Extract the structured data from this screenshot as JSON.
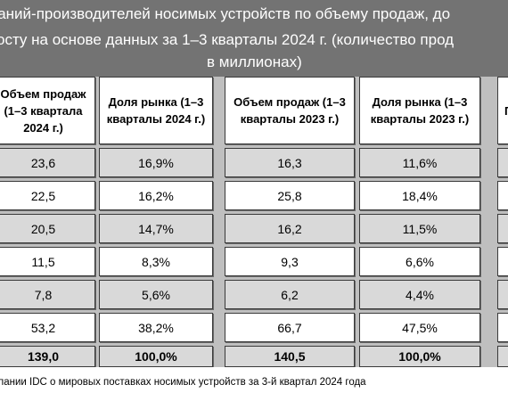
{
  "title": {
    "line1": "паний-производителей носимых устройств по объему продаж, до",
    "line2": "осту на основе данных за 1–3 кварталы 2024 г. (количество прод",
    "line3": "в миллионах)"
  },
  "columns": [
    "Объем продаж (1–3 кварталы 2024 г.)",
    "Доля рынка (1–3 кварталы 2024 г.)",
    "Объем продаж (1–3 кварталы 2023 г.)",
    "Доля рынка (1–3 кварталы 2023 г.)",
    "Г"
  ],
  "header_cells": {
    "c1": [
      "Объем продаж",
      "(1–3 квартала",
      "2024 г.)"
    ],
    "c2": [
      "Доля рынка (1–3",
      "кварталы 2024 г.)"
    ],
    "c3": [
      "Объем продаж (1–3",
      "кварталы 2023 г.)"
    ],
    "c4": [
      "Доля рынка (1–3",
      "кварталы 2023 г.)"
    ],
    "c5": "Г"
  },
  "rows": [
    {
      "sales_2024": "23,6",
      "share_2024": "16,9%",
      "sales_2023": "16,3",
      "share_2023": "11,6%"
    },
    {
      "sales_2024": "22,5",
      "share_2024": "16,2%",
      "sales_2023": "25,8",
      "share_2023": "18,4%"
    },
    {
      "sales_2024": "20,5",
      "share_2024": "14,7%",
      "sales_2023": "16,2",
      "share_2023": "11,5%"
    },
    {
      "sales_2024": "11,5",
      "share_2024": "8,3%",
      "sales_2023": "9,3",
      "share_2023": "6,6%"
    },
    {
      "sales_2024": "7,8",
      "share_2024": "5,6%",
      "sales_2023": "6,2",
      "share_2023": "4,4%"
    },
    {
      "sales_2024": "53,2",
      "share_2024": "38,2%",
      "sales_2023": "66,7",
      "share_2023": "47,5%"
    }
  ],
  "total": {
    "sales_2024": "139,0",
    "share_2024": "100,0%",
    "sales_2023": "140,5",
    "share_2023": "100,0%"
  },
  "footer": "пании IDC о мировых поставках носимых устройств за 3-й квартал 2024 года",
  "colors": {
    "title_bg": "#737373",
    "row_light": "#ffffff",
    "row_dark": "#d9d9d9",
    "grid_bg": "#bfbfbf"
  }
}
